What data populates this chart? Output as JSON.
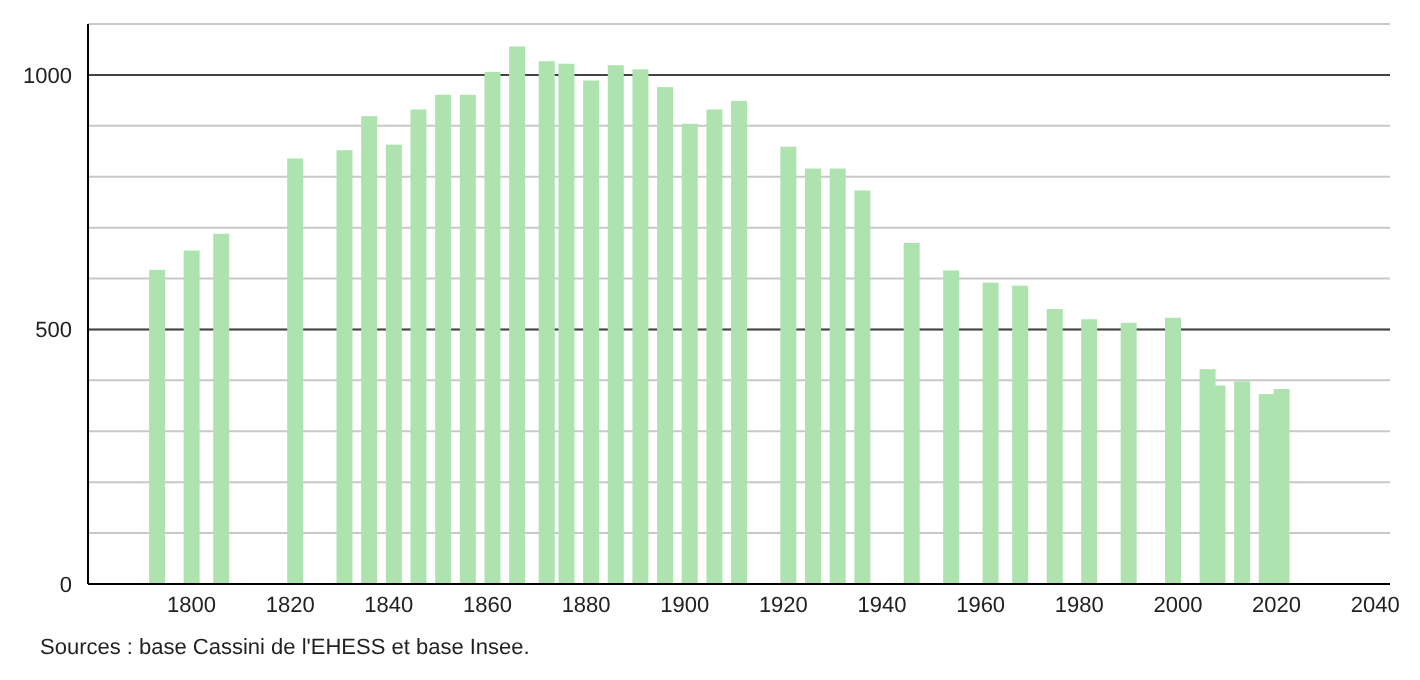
{
  "chart_data": {
    "type": "bar",
    "x": [
      1793,
      1800,
      1806,
      1821,
      1831,
      1836,
      1841,
      1846,
      1851,
      1856,
      1861,
      1866,
      1872,
      1876,
      1881,
      1886,
      1891,
      1896,
      1901,
      1906,
      1911,
      1921,
      1926,
      1931,
      1936,
      1946,
      1954,
      1962,
      1968,
      1975,
      1982,
      1990,
      1999,
      2006,
      2008,
      2013,
      2018,
      2021
    ],
    "values": [
      617,
      655,
      688,
      836,
      852,
      919,
      863,
      932,
      961,
      961,
      1006,
      1056,
      1027,
      1022,
      989,
      1019,
      1011,
      976,
      904,
      932,
      949,
      859,
      816,
      816,
      773,
      670,
      616,
      592,
      586,
      540,
      520,
      513,
      523,
      422,
      390,
      398,
      373,
      383
    ],
    "color": "#aee3b0",
    "xlim": [
      1779,
      2043
    ],
    "xticks": [
      1800,
      1820,
      1840,
      1860,
      1880,
      1900,
      1920,
      1940,
      1960,
      1980,
      2000,
      2020,
      2040
    ],
    "ylim": [
      0,
      1100
    ],
    "yticks": [
      0,
      {
        "value": 100,
        "label": null
      },
      {
        "value": 200,
        "label": null
      },
      {
        "value": 300,
        "label": null
      },
      {
        "value": 400,
        "label": null
      },
      500,
      {
        "value": 600,
        "label": null
      },
      {
        "value": 700,
        "label": null
      },
      {
        "value": 800,
        "label": null
      },
      {
        "value": 900,
        "label": null
      },
      1000,
      {
        "value": 1100,
        "label": null
      }
    ],
    "grid": "y",
    "annotations": [
      "Sources : base Cassini de l'EHESS et base Insee."
    ]
  }
}
